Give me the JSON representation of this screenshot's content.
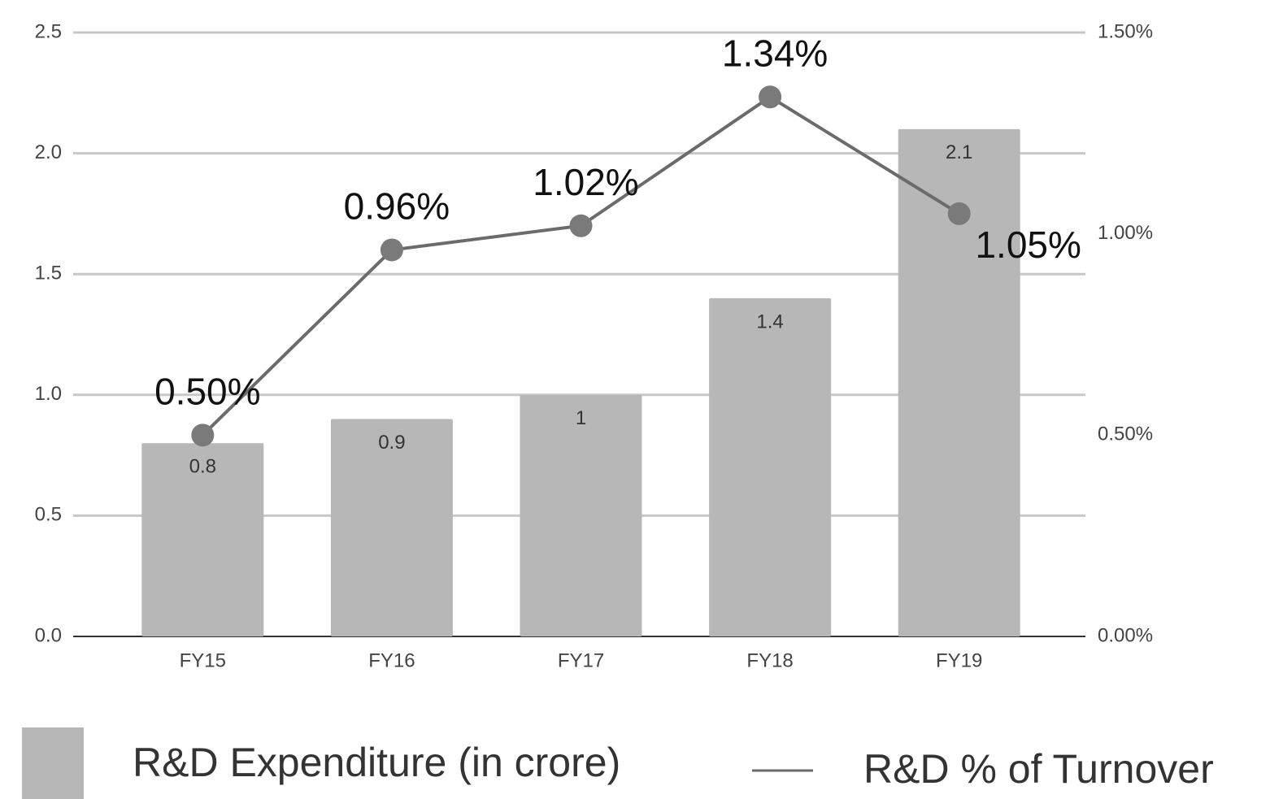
{
  "chart_data": {
    "type": "bar",
    "categories": [
      "FY15",
      "FY16",
      "FY17",
      "FY18",
      "FY19"
    ],
    "series": [
      {
        "name": "R&D Expenditure (in crore)",
        "type": "bar",
        "color": "#b7b7b7",
        "values": [
          0.8,
          0.9,
          1,
          1.4,
          2.1
        ]
      },
      {
        "name": "R&D % of Turnover",
        "type": "line",
        "axis": "y2",
        "color": "#6b6b6b",
        "values": [
          0.5,
          0.96,
          1.02,
          1.34,
          1.05
        ],
        "value_labels": [
          "0.50%",
          "0.96%",
          "1.02%",
          "1.34%",
          "1.05%"
        ]
      }
    ],
    "ylim": [
      0,
      2.5
    ],
    "yticks": [
      {
        "value": 0,
        "label": "0.0"
      },
      0.5,
      {
        "value": 1,
        "label": "1.0"
      },
      1.5,
      {
        "value": 2,
        "label": "2.0"
      },
      2.5
    ],
    "y2lim": [
      0,
      1.5
    ],
    "y2ticks": [
      {
        "value": 0,
        "label": "0.00%"
      },
      {
        "value": 0.5,
        "label": "0.50%"
      },
      {
        "value": 1,
        "label": "1.00%"
      },
      {
        "value": 1.5,
        "label": "1.50%"
      }
    ],
    "grid": true,
    "legend": "bottom"
  }
}
